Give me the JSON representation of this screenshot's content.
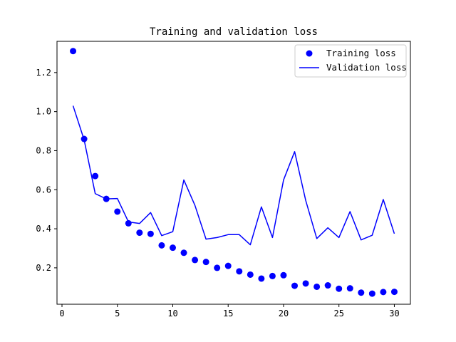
{
  "chart_data": {
    "type": "line",
    "title": "Training and validation loss",
    "xlabel": "",
    "ylabel": "",
    "xlim": [
      -0.45,
      31.45
    ],
    "ylim": [
      0.0135,
      1.36
    ],
    "xticks": [
      0,
      5,
      10,
      15,
      20,
      25,
      30
    ],
    "yticks": [
      0.2,
      0.4,
      0.6,
      0.8,
      1.0,
      1.2
    ],
    "ytick_labels": [
      "0.2",
      "0.4",
      "0.6",
      "0.8",
      "1.0",
      "1.2"
    ],
    "grid": false,
    "legend_position": "top-right",
    "x": [
      1,
      2,
      3,
      4,
      5,
      6,
      7,
      8,
      9,
      10,
      11,
      12,
      13,
      14,
      15,
      16,
      17,
      18,
      19,
      20,
      21,
      22,
      23,
      24,
      25,
      26,
      27,
      28,
      29,
      30
    ],
    "series": [
      {
        "name": "Training loss",
        "style": "dots",
        "color": "#0000ff",
        "values": [
          1.31,
          0.86,
          0.67,
          0.553,
          0.488,
          0.428,
          0.38,
          0.374,
          0.315,
          0.303,
          0.277,
          0.24,
          0.23,
          0.2,
          0.21,
          0.182,
          0.165,
          0.145,
          0.158,
          0.162,
          0.108,
          0.12,
          0.103,
          0.11,
          0.093,
          0.095,
          0.073,
          0.068,
          0.076,
          0.077
        ]
      },
      {
        "name": "Validation loss",
        "style": "line",
        "color": "#0000ff",
        "values": [
          1.03,
          0.855,
          0.58,
          0.553,
          0.555,
          0.435,
          0.427,
          0.483,
          0.365,
          0.385,
          0.65,
          0.52,
          0.347,
          0.355,
          0.37,
          0.37,
          0.318,
          0.512,
          0.355,
          0.65,
          0.795,
          0.545,
          0.35,
          0.405,
          0.355,
          0.488,
          0.343,
          0.367,
          0.55,
          0.375
        ]
      }
    ]
  }
}
